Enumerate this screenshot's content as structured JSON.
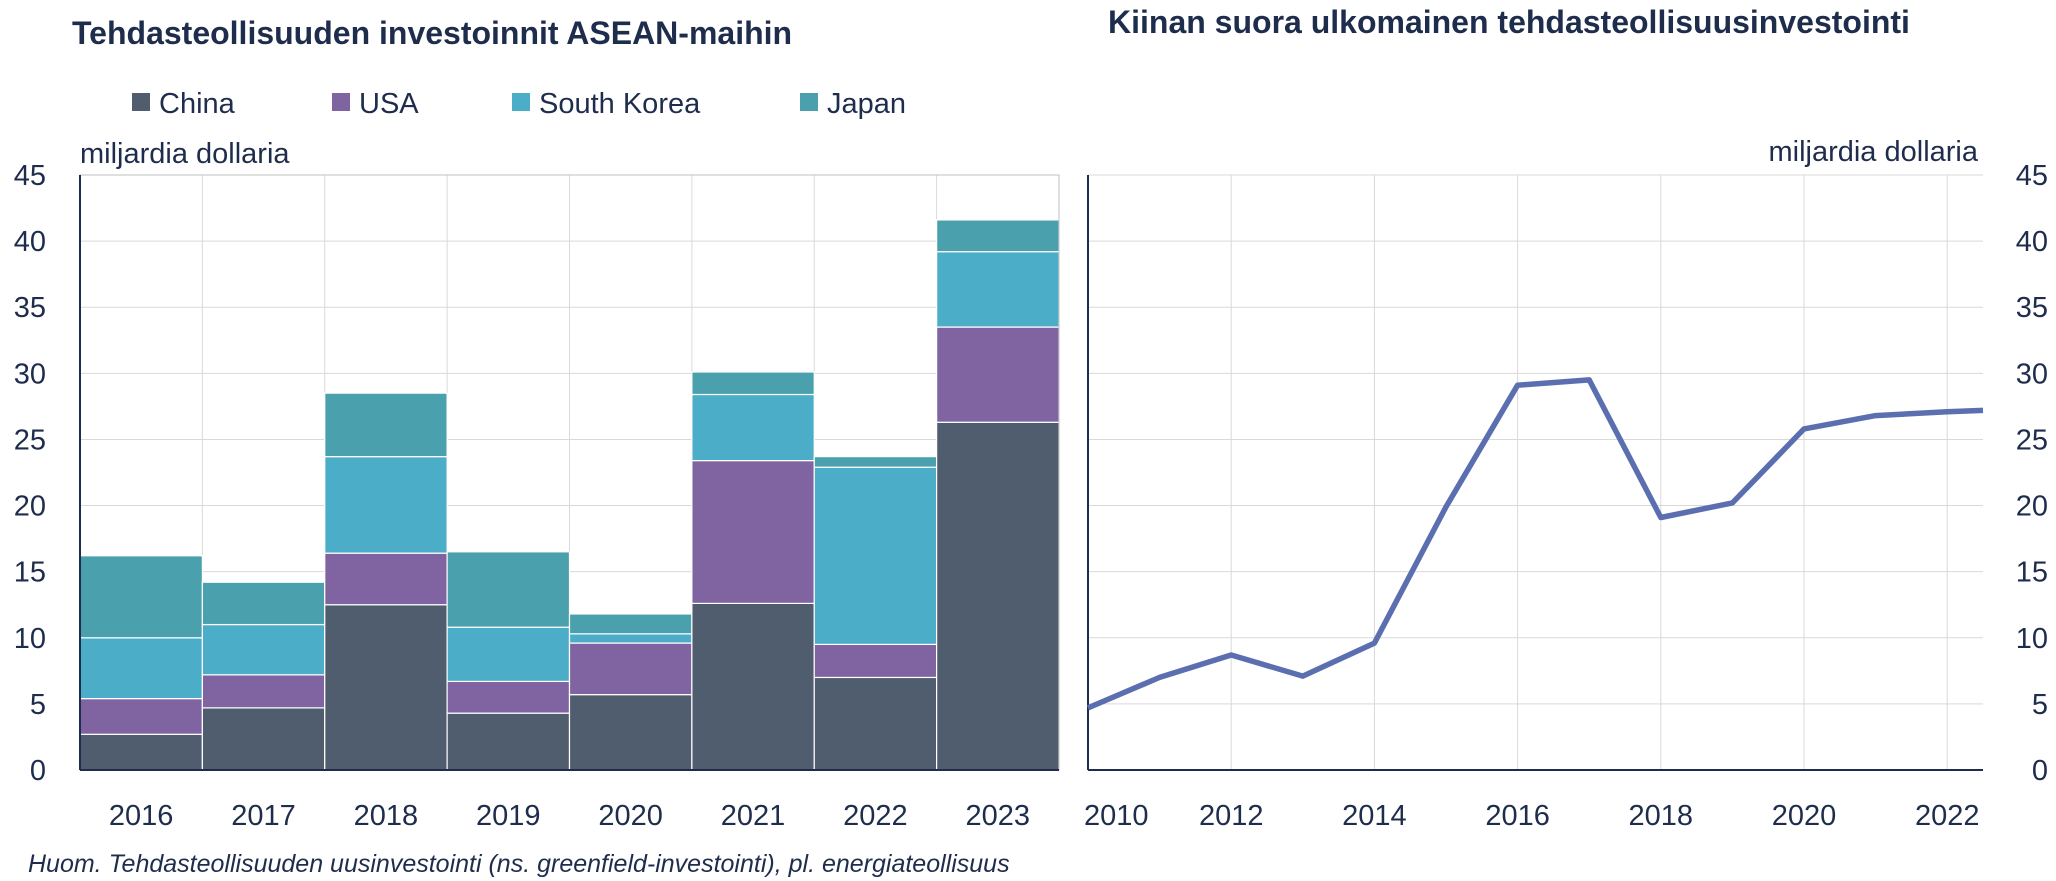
{
  "note": "Huom. Tehdasteollisuuden uusinvestointi (ns. greenfield-investointi), pl. energiateollisuus",
  "chart_data": [
    {
      "type": "bar",
      "stacked": true,
      "title": "Tehdasteollisuuden investoinnit ASEAN-maihin",
      "ylabel": "miljardia dollaria",
      "ylim": [
        0,
        45
      ],
      "yticks": [
        0,
        5,
        10,
        15,
        20,
        25,
        30,
        35,
        40,
        45
      ],
      "grid": true,
      "legend_position": "top",
      "categories": [
        "2016",
        "2017",
        "2018",
        "2019",
        "2020",
        "2021",
        "2022",
        "2023"
      ],
      "series": [
        {
          "name": "China",
          "color": "#505d6e",
          "values": [
            2.7,
            4.7,
            12.5,
            4.3,
            5.7,
            12.6,
            7.0,
            26.3
          ]
        },
        {
          "name": "USA",
          "color": "#8064a2",
          "values": [
            2.7,
            2.5,
            3.9,
            2.4,
            3.9,
            10.8,
            2.5,
            7.2
          ]
        },
        {
          "name": "South Korea",
          "color": "#4badc8",
          "values": [
            4.6,
            3.8,
            7.3,
            4.1,
            0.7,
            5.0,
            13.4,
            5.7
          ]
        },
        {
          "name": "Japan",
          "color": "#4aa0ad",
          "values": [
            6.2,
            3.2,
            4.8,
            5.7,
            1.5,
            1.7,
            0.8,
            2.4
          ]
        }
      ]
    },
    {
      "type": "line",
      "title": "Kiinan suora ulkomainen tehdasteollisuusinvestointi",
      "ylabel": "miljardia dollaria",
      "ylim": [
        0,
        45
      ],
      "yticks": [
        0,
        5,
        10,
        15,
        20,
        25,
        30,
        35,
        40,
        45
      ],
      "xlim": [
        2010,
        2022.5
      ],
      "xticks": [
        2010,
        2012,
        2014,
        2016,
        2018,
        2020,
        2022
      ],
      "grid": true,
      "y_axis_side": "right",
      "series": [
        {
          "color": "#5b6fb0",
          "x": [
            2010,
            2011,
            2012,
            2013,
            2014,
            2015,
            2016,
            2017,
            2018,
            2019,
            2020,
            2021,
            2022,
            2023
          ],
          "y": [
            4.7,
            7.0,
            8.7,
            7.1,
            9.6,
            19.9,
            29.1,
            29.5,
            19.1,
            20.2,
            25.8,
            26.8,
            27.1,
            27.3
          ]
        }
      ]
    }
  ]
}
